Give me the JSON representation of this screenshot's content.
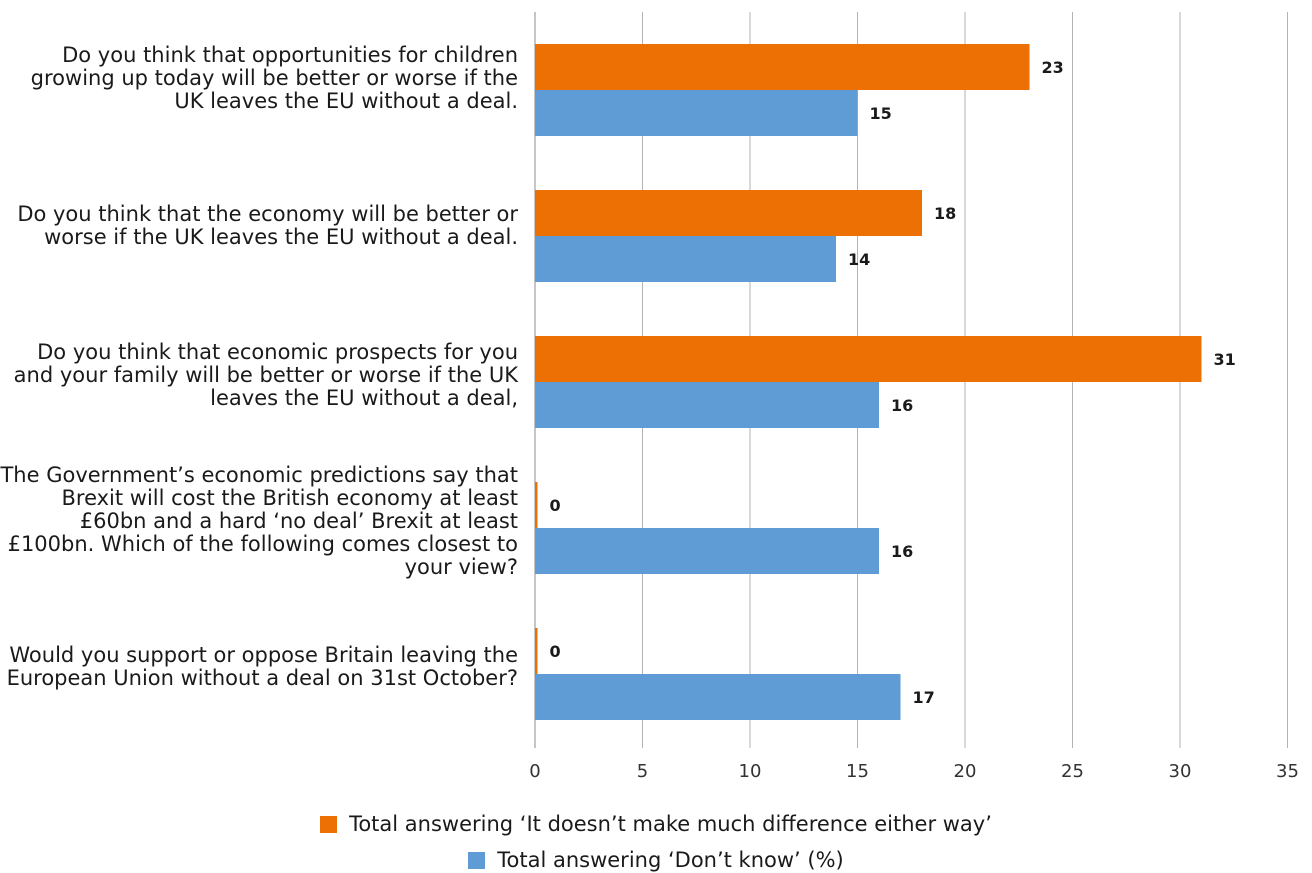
{
  "chart_data": {
    "type": "bar",
    "orientation": "horizontal",
    "categories": [
      "Do you think that opportunities for children growing up today will be better or worse if the UK leaves the EU without a deal.",
      "Do you think that the economy will be better or worse if the UK leaves the EU without a deal.",
      "Do you think that economic prospects for you and your family will be better or worse if the UK leaves the EU without a deal,",
      "The Government’s economic predictions say that Brexit will cost the British economy at least £60bn and a hard ‘no deal’ Brexit at least £100bn. Which of the following comes closest to your view?",
      "Would you support or oppose Britain leaving the European Union without a deal on 31st October?"
    ],
    "series": [
      {
        "name": "Total answering ‘It doesn’t make much difference either way’",
        "color": "#ec7004",
        "values": [
          23,
          18,
          31,
          0,
          0
        ]
      },
      {
        "name": "Total answering ‘Don’t know’ (%)",
        "color": "#5f9bd5",
        "values": [
          15,
          14,
          16,
          16,
          17
        ]
      }
    ],
    "xlim": [
      0,
      35
    ],
    "xticks": [
      "0",
      "5",
      "10",
      "15",
      "20",
      "25",
      "30",
      "35"
    ],
    "grid": true,
    "legend_position": "bottom-center",
    "data_labels": true
  }
}
